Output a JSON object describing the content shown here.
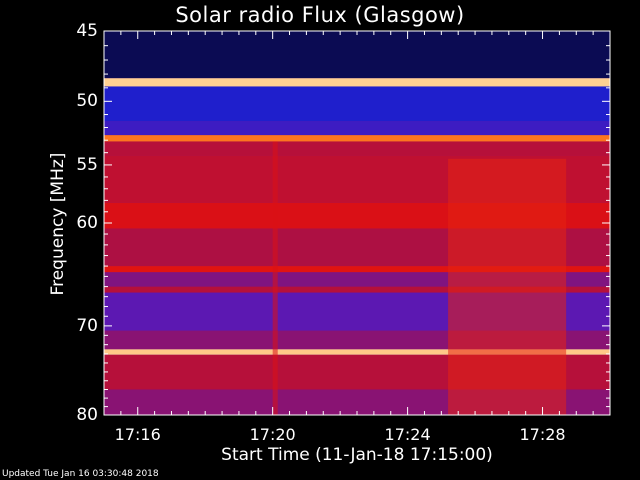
{
  "chart_data": {
    "type": "heatmap",
    "title": "Solar radio Flux (Glasgow)",
    "xlabel": "Start Time (11-Jan-18 17:15:00)",
    "ylabel": "Frequency [MHz]",
    "x_tick_labels": [
      "17:16",
      "17:20",
      "17:24",
      "17:28"
    ],
    "x_tick_minutes": [
      1,
      5,
      9,
      13
    ],
    "xlim_minutes": [
      0,
      15
    ],
    "y_tick_labels": [
      "45",
      "50",
      "55",
      "60",
      "70",
      "80"
    ],
    "y_tick_values": [
      45,
      50,
      55,
      60,
      70,
      80
    ],
    "ylim": [
      45,
      80
    ],
    "y_scale": "log",
    "colormap": [
      "#000010",
      "#101070",
      "#2020d0",
      "#6018b0",
      "#a01050",
      "#e01010",
      "#ff7a20",
      "#ffe8b0"
    ],
    "bands": [
      {
        "freq_start": 45,
        "freq_end": 48.3,
        "level": 0.1
      },
      {
        "freq_start": 48.3,
        "freq_end": 48.9,
        "level": 0.97
      },
      {
        "freq_start": 48.9,
        "freq_end": 51.5,
        "level": 0.28
      },
      {
        "freq_start": 51.5,
        "freq_end": 52.6,
        "level": 0.35
      },
      {
        "freq_start": 52.6,
        "freq_end": 53.1,
        "level": 0.85
      },
      {
        "freq_start": 53.1,
        "freq_end": 54.2,
        "level": 0.62
      },
      {
        "freq_start": 54.2,
        "freq_end": 58.2,
        "level": 0.64
      },
      {
        "freq_start": 58.2,
        "freq_end": 60.5,
        "level": 0.7
      },
      {
        "freq_start": 60.5,
        "freq_end": 64.0,
        "level": 0.6
      },
      {
        "freq_start": 64.0,
        "freq_end": 64.6,
        "level": 0.72
      },
      {
        "freq_start": 64.6,
        "freq_end": 66.0,
        "level": 0.5
      },
      {
        "freq_start": 66.0,
        "freq_end": 66.6,
        "level": 0.62
      },
      {
        "freq_start": 66.6,
        "freq_end": 70.5,
        "level": 0.42
      },
      {
        "freq_start": 70.5,
        "freq_end": 72.5,
        "level": 0.52
      },
      {
        "freq_start": 72.5,
        "freq_end": 73.1,
        "level": 0.96
      },
      {
        "freq_start": 73.1,
        "freq_end": 77.0,
        "level": 0.62
      },
      {
        "freq_start": 77.0,
        "freq_end": 80,
        "level": 0.52
      }
    ],
    "bursts": [
      {
        "t_start": 10.2,
        "t_end": 13.7,
        "freq_start": 54.5,
        "freq_end": 80,
        "level": 0.74
      },
      {
        "t_start": 5.0,
        "t_end": 5.15,
        "freq_start": 53.1,
        "freq_end": 80,
        "level": 0.7
      }
    ]
  },
  "footer": "Updated Tue Jan 16 03:30:48 2018"
}
